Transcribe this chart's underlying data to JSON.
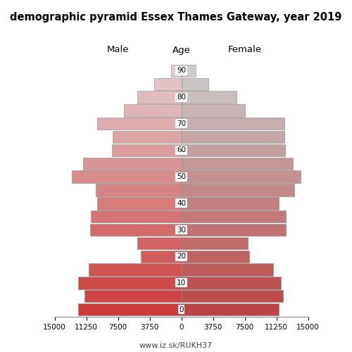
{
  "title": "demographic pyramid Essex Thames Gateway, year 2019",
  "age_labels": [
    "0",
    "",
    "10",
    "",
    "20",
    "",
    "30",
    "",
    "40",
    "",
    "50",
    "",
    "60",
    "",
    "70",
    "",
    "80",
    "",
    "90"
  ],
  "male": [
    12200,
    11500,
    12200,
    11000,
    4800,
    5200,
    10800,
    10700,
    10000,
    10100,
    13000,
    11600,
    8200,
    8100,
    10000,
    6800,
    5200,
    3200,
    1200
  ],
  "female": [
    11500,
    12000,
    11800,
    10900,
    8000,
    7900,
    12400,
    12400,
    11500,
    13400,
    14100,
    13200,
    12300,
    12200,
    12200,
    7500,
    6500,
    3200,
    1700
  ],
  "xlim": 15000,
  "url": "www.iz.sk/RUKH37",
  "male_young": [
    0.804,
    0.231,
    0.231
  ],
  "male_old": [
    0.89,
    0.8,
    0.8
  ],
  "female_young": [
    0.733,
    0.267,
    0.267
  ],
  "female_old": [
    0.8,
    0.8,
    0.8
  ]
}
